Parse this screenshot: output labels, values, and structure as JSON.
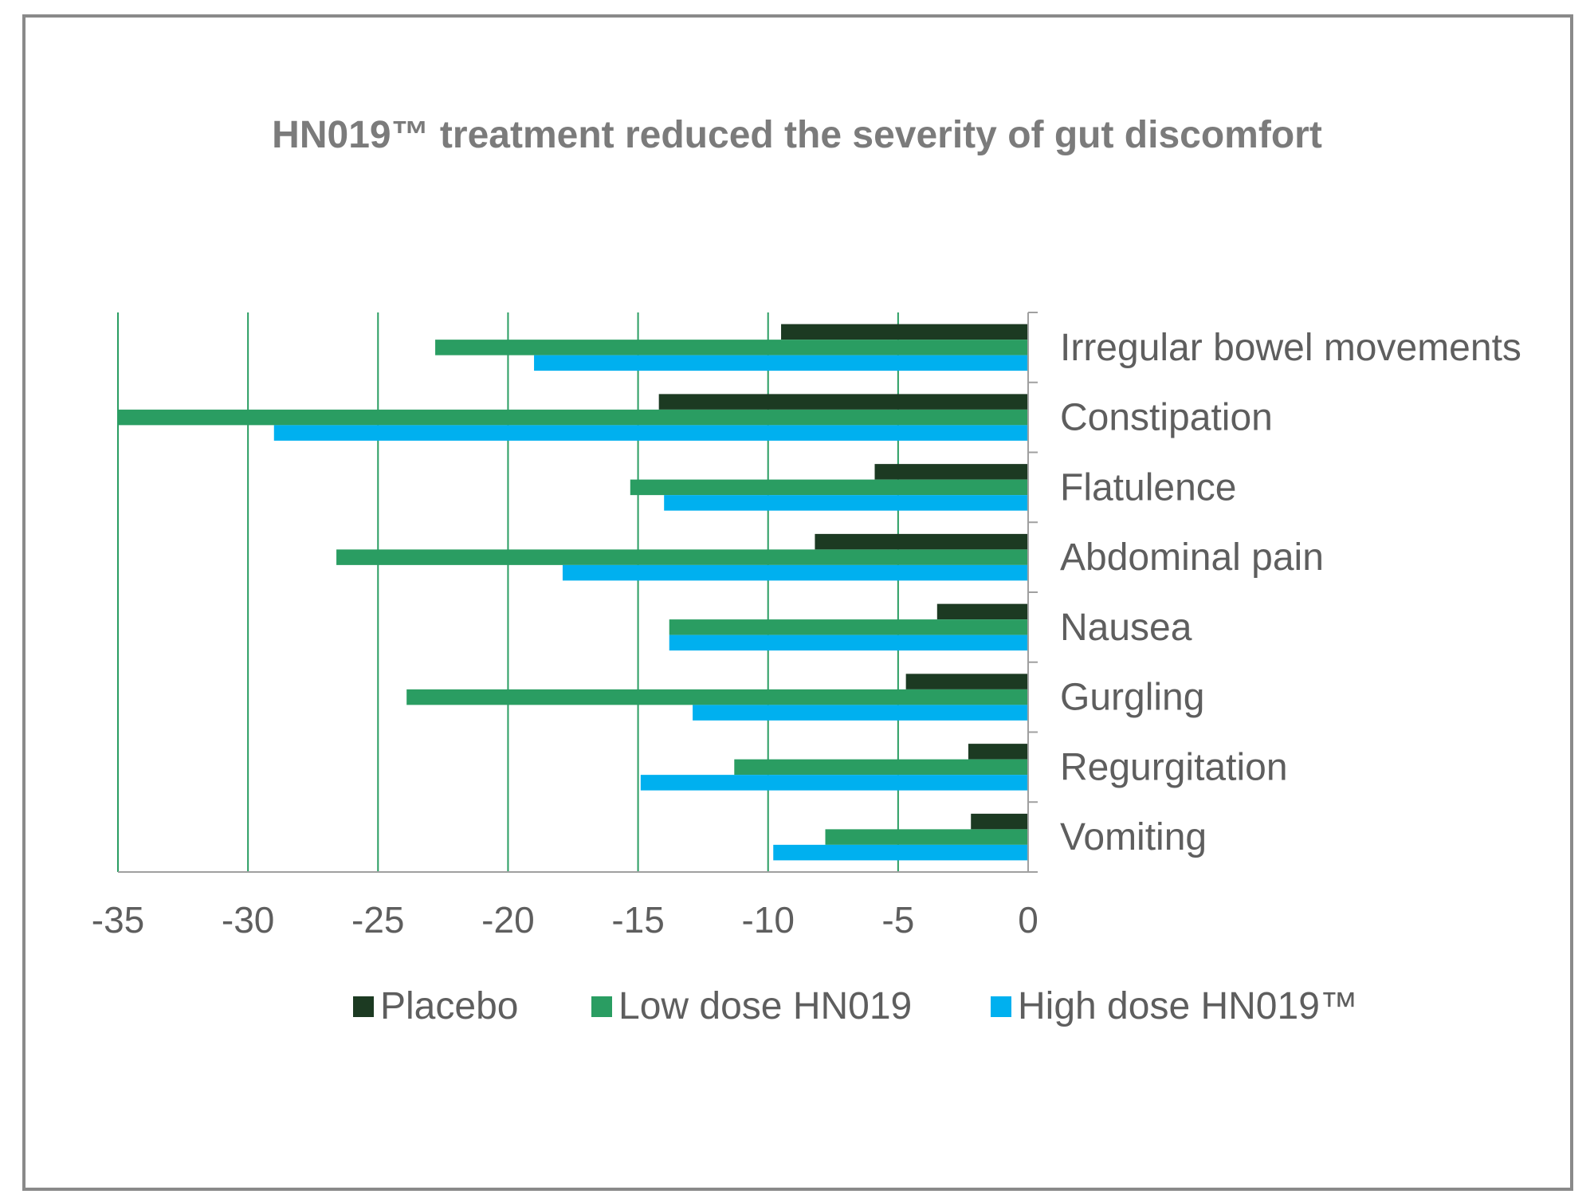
{
  "chart_data": {
    "type": "bar",
    "orientation": "horizontal",
    "title": "HN019™ treatment reduced the severity of gut discomfort",
    "categories": [
      "Irregular bowel movements",
      "Constipation",
      "Flatulence",
      "Abdominal pain",
      "Nausea",
      "Gurgling",
      "Regurgitation",
      "Vomiting"
    ],
    "series": [
      {
        "name": "Placebo",
        "color": "#1c3a22",
        "values": [
          -9.5,
          -14.2,
          -5.9,
          -8.2,
          -3.5,
          -4.7,
          -2.3,
          -2.2
        ]
      },
      {
        "name": "Low dose HN019",
        "color": "#2a9d62",
        "values": [
          -22.8,
          -35,
          -15.3,
          -26.6,
          -13.8,
          -23.9,
          -11.3,
          -7.8
        ]
      },
      {
        "name": "High dose HN019™",
        "color": "#00b0ef",
        "values": [
          -19,
          -29,
          -14,
          -17.9,
          -13.8,
          -12.9,
          -14.9,
          -9.8
        ]
      }
    ],
    "xlim": [
      -35,
      0
    ],
    "xticks": [
      "-35",
      "-30",
      "-25",
      "-20",
      "-15",
      "-10",
      "-5",
      "0"
    ],
    "grid": true,
    "gridline_color": "#2a9d62",
    "legend_position": "bottom",
    "category_label_position": "right"
  }
}
